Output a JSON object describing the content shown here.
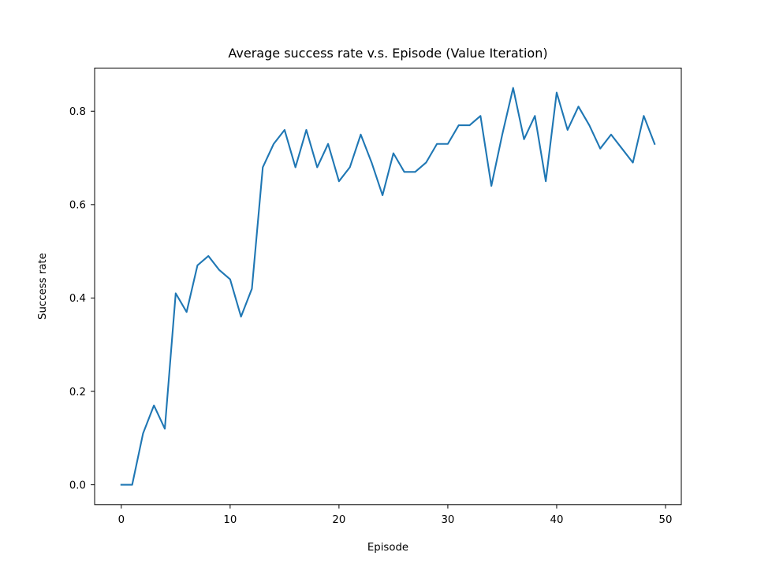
{
  "chart_data": {
    "type": "line",
    "title": "Average success rate v.s. Episode (Value Iteration)",
    "xlabel": "Episode",
    "ylabel": "Success rate",
    "xlim": [
      -2.45,
      51.45
    ],
    "ylim": [
      -0.0425,
      0.8925
    ],
    "xticks": [
      0,
      10,
      20,
      30,
      40,
      50
    ],
    "yticks": [
      0.0,
      0.2,
      0.4,
      0.6,
      0.8
    ],
    "xtick_labels": [
      "0",
      "10",
      "20",
      "30",
      "40",
      "50"
    ],
    "ytick_labels": [
      "0.0",
      "0.2",
      "0.4",
      "0.6",
      "0.8"
    ],
    "grid": false,
    "series": [
      {
        "color": "#1f77b4",
        "x": [
          0,
          1,
          2,
          3,
          4,
          5,
          6,
          7,
          8,
          9,
          10,
          11,
          12,
          13,
          14,
          15,
          16,
          17,
          18,
          19,
          20,
          21,
          22,
          23,
          24,
          25,
          26,
          27,
          28,
          29,
          30,
          31,
          32,
          33,
          34,
          35,
          36,
          37,
          38,
          39,
          40,
          41,
          42,
          43,
          44,
          45,
          46,
          47,
          48,
          49
        ],
        "values": [
          0.0,
          0.0,
          0.11,
          0.17,
          0.12,
          0.41,
          0.37,
          0.47,
          0.49,
          0.46,
          0.44,
          0.36,
          0.42,
          0.68,
          0.73,
          0.76,
          0.68,
          0.76,
          0.68,
          0.73,
          0.65,
          0.68,
          0.75,
          0.69,
          0.62,
          0.71,
          0.67,
          0.67,
          0.69,
          0.73,
          0.73,
          0.77,
          0.77,
          0.79,
          0.64,
          0.75,
          0.85,
          0.74,
          0.79,
          0.65,
          0.84,
          0.76,
          0.81,
          0.77,
          0.72,
          0.75,
          0.72,
          0.69,
          0.79,
          0.73
        ]
      }
    ]
  }
}
